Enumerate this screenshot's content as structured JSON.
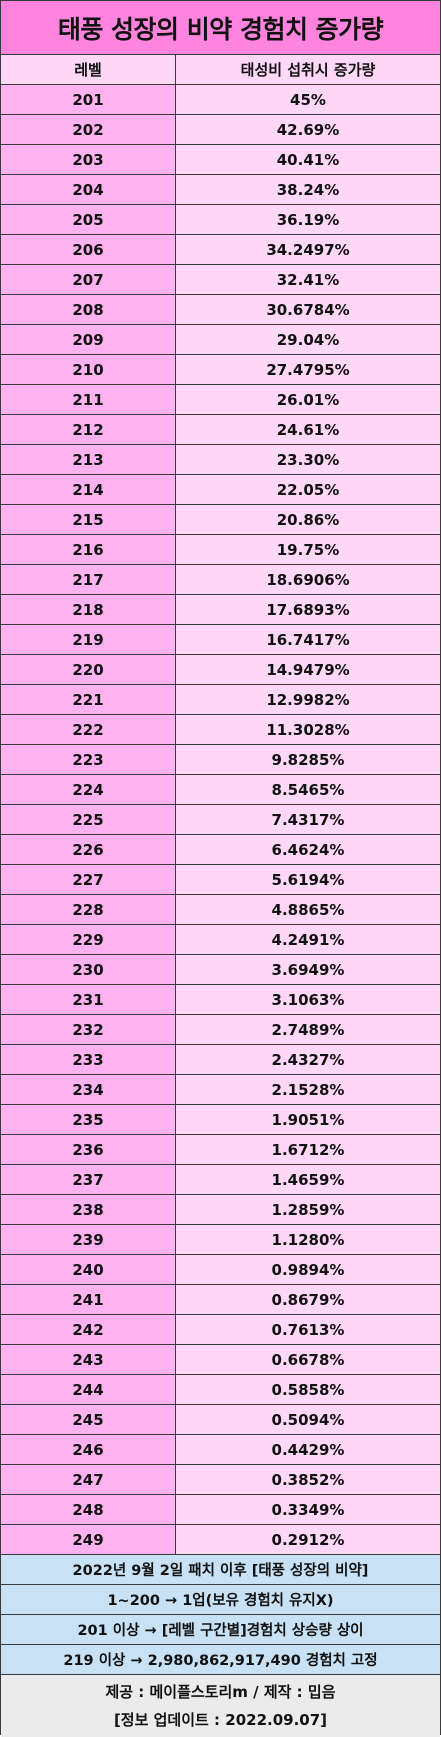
{
  "title": "태풍 성장의 비약 경험치 증가량",
  "header": {
    "level": "레벨",
    "rate": "태성비 섭취시 증가량"
  },
  "rows": [
    {
      "level": "201",
      "rate": "45%"
    },
    {
      "level": "202",
      "rate": "42.69%"
    },
    {
      "level": "203",
      "rate": "40.41%"
    },
    {
      "level": "204",
      "rate": "38.24%"
    },
    {
      "level": "205",
      "rate": "36.19%"
    },
    {
      "level": "206",
      "rate": "34.2497%"
    },
    {
      "level": "207",
      "rate": "32.41%"
    },
    {
      "level": "208",
      "rate": "30.6784%"
    },
    {
      "level": "209",
      "rate": "29.04%"
    },
    {
      "level": "210",
      "rate": "27.4795%"
    },
    {
      "level": "211",
      "rate": "26.01%"
    },
    {
      "level": "212",
      "rate": "24.61%"
    },
    {
      "level": "213",
      "rate": "23.30%"
    },
    {
      "level": "214",
      "rate": "22.05%"
    },
    {
      "level": "215",
      "rate": "20.86%"
    },
    {
      "level": "216",
      "rate": "19.75%"
    },
    {
      "level": "217",
      "rate": "18.6906%"
    },
    {
      "level": "218",
      "rate": "17.6893%"
    },
    {
      "level": "219",
      "rate": "16.7417%"
    },
    {
      "level": "220",
      "rate": "14.9479%"
    },
    {
      "level": "221",
      "rate": "12.9982%"
    },
    {
      "level": "222",
      "rate": "11.3028%"
    },
    {
      "level": "223",
      "rate": "9.8285%"
    },
    {
      "level": "224",
      "rate": "8.5465%"
    },
    {
      "level": "225",
      "rate": "7.4317%"
    },
    {
      "level": "226",
      "rate": "6.4624%"
    },
    {
      "level": "227",
      "rate": "5.6194%"
    },
    {
      "level": "228",
      "rate": "4.8865%"
    },
    {
      "level": "229",
      "rate": "4.2491%"
    },
    {
      "level": "230",
      "rate": "3.6949%"
    },
    {
      "level": "231",
      "rate": "3.1063%"
    },
    {
      "level": "232",
      "rate": "2.7489%"
    },
    {
      "level": "233",
      "rate": "2.4327%"
    },
    {
      "level": "234",
      "rate": "2.1528%"
    },
    {
      "level": "235",
      "rate": "1.9051%"
    },
    {
      "level": "236",
      "rate": "1.6712%"
    },
    {
      "level": "237",
      "rate": "1.4659%"
    },
    {
      "level": "238",
      "rate": "1.2859%"
    },
    {
      "level": "239",
      "rate": "1.1280%"
    },
    {
      "level": "240",
      "rate": "0.9894%"
    },
    {
      "level": "241",
      "rate": "0.8679%"
    },
    {
      "level": "242",
      "rate": "0.7613%"
    },
    {
      "level": "243",
      "rate": "0.6678%"
    },
    {
      "level": "244",
      "rate": "0.5858%"
    },
    {
      "level": "245",
      "rate": "0.5094%"
    },
    {
      "level": "246",
      "rate": "0.4429%"
    },
    {
      "level": "247",
      "rate": "0.3852%"
    },
    {
      "level": "248",
      "rate": "0.3349%"
    },
    {
      "level": "249",
      "rate": "0.2912%"
    }
  ],
  "notes": [
    "2022년 9월 2일 패치 이후 [태풍 성장의 비약]",
    "1~200 → 1업(보유 경험치 유지X)",
    "201 이상 → [레벨 구간별]경험치 상승량 상이",
    "219 이상 → 2,980,862,917,490 경험치 고정"
  ],
  "footer": {
    "credit": "제공 : 메이플스토리m / 제작 : 밉음",
    "update": "[정보 업데이트 : 2022.09.07]"
  },
  "colors": {
    "title_bg": "#ff84de",
    "level_cell_bg": "#ffb2f0",
    "rate_cell_bg": "#ffd8f7",
    "note_bg": "#c8e1f4",
    "footer_bg": "#ebebeb"
  }
}
